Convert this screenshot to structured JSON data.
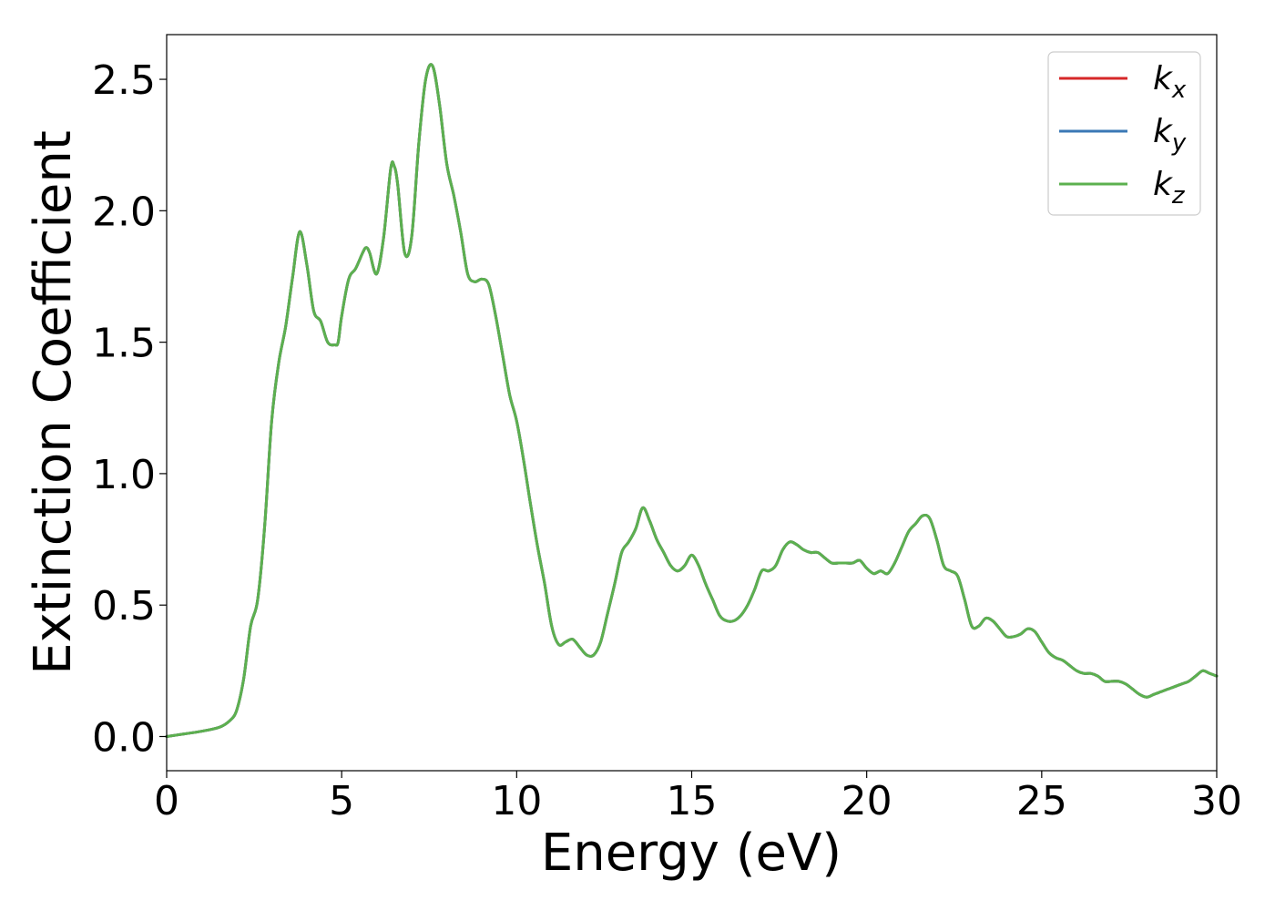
{
  "chart_data": {
    "type": "line",
    "title": "",
    "xlabel": "Energy (eV)",
    "ylabel": "Extinction Coefficient",
    "xlim": [
      0,
      30
    ],
    "ylim": [
      -0.13,
      2.67
    ],
    "xticks": [
      0,
      5,
      10,
      15,
      20,
      25,
      30
    ],
    "yticks": [
      0.0,
      0.5,
      1.0,
      1.5,
      2.0,
      2.5
    ],
    "ytick_labels": [
      "0.0",
      "0.5",
      "1.0",
      "1.5",
      "2.0",
      "2.5"
    ],
    "grid": false,
    "legend_position": "top-right",
    "legend": [
      {
        "base": "k",
        "sub": "x",
        "color": "#d62728"
      },
      {
        "base": "k",
        "sub": "y",
        "color": "#3a78b5"
      },
      {
        "base": "k",
        "sub": "z",
        "color": "#5cb04f"
      }
    ],
    "x": [
      0,
      0.5,
      1.0,
      1.5,
      1.8,
      2.0,
      2.2,
      2.4,
      2.6,
      2.8,
      3.0,
      3.2,
      3.4,
      3.6,
      3.8,
      4.0,
      4.2,
      4.4,
      4.6,
      4.8,
      4.9,
      5.0,
      5.2,
      5.4,
      5.6,
      5.7,
      5.8,
      6.0,
      6.2,
      6.4,
      6.5,
      6.6,
      6.8,
      7.0,
      7.2,
      7.4,
      7.6,
      7.8,
      8.0,
      8.2,
      8.4,
      8.6,
      8.8,
      9.0,
      9.2,
      9.4,
      9.6,
      9.8,
      10.0,
      10.2,
      10.4,
      10.6,
      10.8,
      11.0,
      11.2,
      11.4,
      11.6,
      11.8,
      12.0,
      12.2,
      12.4,
      12.6,
      12.8,
      13.0,
      13.2,
      13.4,
      13.6,
      13.8,
      14.0,
      14.2,
      14.4,
      14.6,
      14.8,
      15.0,
      15.2,
      15.4,
      15.6,
      15.8,
      16.0,
      16.2,
      16.4,
      16.6,
      16.8,
      17.0,
      17.2,
      17.4,
      17.6,
      17.8,
      18.0,
      18.2,
      18.4,
      18.6,
      18.8,
      19.0,
      19.2,
      19.4,
      19.6,
      19.8,
      20.0,
      20.2,
      20.4,
      20.6,
      20.8,
      21.0,
      21.2,
      21.4,
      21.6,
      21.8,
      22.0,
      22.2,
      22.4,
      22.6,
      22.8,
      23.0,
      23.2,
      23.4,
      23.6,
      23.8,
      24.0,
      24.2,
      24.4,
      24.6,
      24.8,
      25.0,
      25.2,
      25.4,
      25.6,
      25.8,
      26.0,
      26.2,
      26.4,
      26.6,
      26.8,
      27.0,
      27.2,
      27.4,
      27.6,
      27.8,
      28.0,
      28.2,
      28.4,
      28.6,
      28.8,
      29.0,
      29.2,
      29.4,
      29.6,
      29.8,
      30.0
    ],
    "series": [
      {
        "name": "k_x",
        "color": "#d62728",
        "values": [
          0.0,
          0.01,
          0.02,
          0.035,
          0.06,
          0.1,
          0.22,
          0.42,
          0.52,
          0.8,
          1.2,
          1.42,
          1.56,
          1.75,
          1.92,
          1.8,
          1.62,
          1.58,
          1.5,
          1.49,
          1.5,
          1.6,
          1.74,
          1.78,
          1.84,
          1.86,
          1.84,
          1.76,
          1.9,
          2.16,
          2.17,
          2.1,
          1.84,
          1.9,
          2.25,
          2.5,
          2.55,
          2.4,
          2.18,
          2.06,
          1.92,
          1.76,
          1.73,
          1.74,
          1.72,
          1.6,
          1.45,
          1.3,
          1.2,
          1.05,
          0.88,
          0.72,
          0.58,
          0.42,
          0.35,
          0.36,
          0.37,
          0.34,
          0.31,
          0.31,
          0.36,
          0.47,
          0.58,
          0.7,
          0.74,
          0.79,
          0.87,
          0.82,
          0.75,
          0.7,
          0.65,
          0.63,
          0.65,
          0.69,
          0.65,
          0.58,
          0.52,
          0.46,
          0.44,
          0.44,
          0.46,
          0.5,
          0.56,
          0.63,
          0.63,
          0.65,
          0.71,
          0.74,
          0.73,
          0.71,
          0.7,
          0.7,
          0.68,
          0.66,
          0.66,
          0.66,
          0.66,
          0.67,
          0.64,
          0.62,
          0.63,
          0.62,
          0.66,
          0.72,
          0.78,
          0.81,
          0.84,
          0.83,
          0.75,
          0.65,
          0.63,
          0.61,
          0.52,
          0.42,
          0.42,
          0.45,
          0.44,
          0.41,
          0.38,
          0.38,
          0.39,
          0.41,
          0.4,
          0.36,
          0.32,
          0.3,
          0.29,
          0.27,
          0.25,
          0.24,
          0.24,
          0.23,
          0.21,
          0.21,
          0.21,
          0.2,
          0.18,
          0.16,
          0.15,
          0.16,
          0.17,
          0.18,
          0.19,
          0.2,
          0.21,
          0.23,
          0.25,
          0.24,
          0.23
        ]
      },
      {
        "name": "k_y",
        "color": "#3a78b5",
        "values": [
          0.0,
          0.01,
          0.02,
          0.035,
          0.06,
          0.1,
          0.22,
          0.42,
          0.52,
          0.8,
          1.2,
          1.42,
          1.56,
          1.75,
          1.92,
          1.8,
          1.62,
          1.58,
          1.5,
          1.49,
          1.5,
          1.6,
          1.74,
          1.78,
          1.84,
          1.86,
          1.84,
          1.76,
          1.9,
          2.16,
          2.17,
          2.1,
          1.84,
          1.9,
          2.25,
          2.5,
          2.55,
          2.4,
          2.18,
          2.06,
          1.92,
          1.76,
          1.73,
          1.74,
          1.72,
          1.6,
          1.45,
          1.3,
          1.2,
          1.05,
          0.88,
          0.72,
          0.58,
          0.42,
          0.35,
          0.36,
          0.37,
          0.34,
          0.31,
          0.31,
          0.36,
          0.47,
          0.58,
          0.7,
          0.74,
          0.79,
          0.87,
          0.82,
          0.75,
          0.7,
          0.65,
          0.63,
          0.65,
          0.69,
          0.65,
          0.58,
          0.52,
          0.46,
          0.44,
          0.44,
          0.46,
          0.5,
          0.56,
          0.63,
          0.63,
          0.65,
          0.71,
          0.74,
          0.73,
          0.71,
          0.7,
          0.7,
          0.68,
          0.66,
          0.66,
          0.66,
          0.66,
          0.67,
          0.64,
          0.62,
          0.63,
          0.62,
          0.66,
          0.72,
          0.78,
          0.81,
          0.84,
          0.83,
          0.75,
          0.65,
          0.63,
          0.61,
          0.52,
          0.42,
          0.42,
          0.45,
          0.44,
          0.41,
          0.38,
          0.38,
          0.39,
          0.41,
          0.4,
          0.36,
          0.32,
          0.3,
          0.29,
          0.27,
          0.25,
          0.24,
          0.24,
          0.23,
          0.21,
          0.21,
          0.21,
          0.2,
          0.18,
          0.16,
          0.15,
          0.16,
          0.17,
          0.18,
          0.19,
          0.2,
          0.21,
          0.23,
          0.25,
          0.24,
          0.23
        ]
      },
      {
        "name": "k_z",
        "color": "#5cb04f",
        "values": [
          0.0,
          0.01,
          0.02,
          0.035,
          0.06,
          0.1,
          0.22,
          0.42,
          0.52,
          0.8,
          1.2,
          1.42,
          1.56,
          1.75,
          1.92,
          1.8,
          1.62,
          1.58,
          1.5,
          1.49,
          1.5,
          1.6,
          1.74,
          1.78,
          1.84,
          1.86,
          1.84,
          1.76,
          1.9,
          2.16,
          2.17,
          2.1,
          1.84,
          1.9,
          2.25,
          2.5,
          2.55,
          2.4,
          2.18,
          2.06,
          1.92,
          1.76,
          1.73,
          1.74,
          1.72,
          1.6,
          1.45,
          1.3,
          1.2,
          1.05,
          0.88,
          0.72,
          0.58,
          0.42,
          0.35,
          0.36,
          0.37,
          0.34,
          0.31,
          0.31,
          0.36,
          0.47,
          0.58,
          0.7,
          0.74,
          0.79,
          0.87,
          0.82,
          0.75,
          0.7,
          0.65,
          0.63,
          0.65,
          0.69,
          0.65,
          0.58,
          0.52,
          0.46,
          0.44,
          0.44,
          0.46,
          0.5,
          0.56,
          0.63,
          0.63,
          0.65,
          0.71,
          0.74,
          0.73,
          0.71,
          0.7,
          0.7,
          0.68,
          0.66,
          0.66,
          0.66,
          0.66,
          0.67,
          0.64,
          0.62,
          0.63,
          0.62,
          0.66,
          0.72,
          0.78,
          0.81,
          0.84,
          0.83,
          0.75,
          0.65,
          0.63,
          0.61,
          0.52,
          0.42,
          0.42,
          0.45,
          0.44,
          0.41,
          0.38,
          0.38,
          0.39,
          0.41,
          0.4,
          0.36,
          0.32,
          0.3,
          0.29,
          0.27,
          0.25,
          0.24,
          0.24,
          0.23,
          0.21,
          0.21,
          0.21,
          0.2,
          0.18,
          0.16,
          0.15,
          0.16,
          0.17,
          0.18,
          0.19,
          0.2,
          0.21,
          0.23,
          0.25,
          0.24,
          0.23
        ]
      }
    ]
  }
}
